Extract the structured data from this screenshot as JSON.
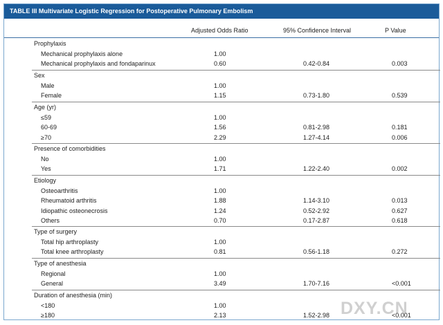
{
  "title": "TABLE III Multivariate Logistic Regression for Postoperative Pulmonary Embolism",
  "columns": {
    "or": "Adjusted Odds Ratio",
    "ci": "95% Confidence Interval",
    "p": "P Value"
  },
  "sections": [
    {
      "label": "Prophylaxis",
      "rows": [
        {
          "label": "Mechanical prophylaxis alone",
          "or": "1.00",
          "ci": "",
          "p": ""
        },
        {
          "label": "Mechanical prophylaxis and fondaparinux",
          "or": "0.60",
          "ci": "0.42-0.84",
          "p": "0.003"
        }
      ]
    },
    {
      "label": "Sex",
      "rows": [
        {
          "label": "Male",
          "or": "1.00",
          "ci": "",
          "p": ""
        },
        {
          "label": "Female",
          "or": "1.15",
          "ci": "0.73-1.80",
          "p": "0.539"
        }
      ]
    },
    {
      "label": "Age (yr)",
      "rows": [
        {
          "label": "≤59",
          "or": "1.00",
          "ci": "",
          "p": ""
        },
        {
          "label": "60-69",
          "or": "1.56",
          "ci": "0.81-2.98",
          "p": "0.181"
        },
        {
          "label": "≥70",
          "or": "2.29",
          "ci": "1.27-4.14",
          "p": "0.006"
        }
      ]
    },
    {
      "label": "Presence of comorbidities",
      "rows": [
        {
          "label": "No",
          "or": "1.00",
          "ci": "",
          "p": ""
        },
        {
          "label": "Yes",
          "or": "1.71",
          "ci": "1.22-2.40",
          "p": "0.002"
        }
      ]
    },
    {
      "label": "Etiology",
      "rows": [
        {
          "label": "Osteoarthritis",
          "or": "1.00",
          "ci": "",
          "p": ""
        },
        {
          "label": "Rheumatoid arthritis",
          "or": "1.88",
          "ci": "1.14-3.10",
          "p": "0.013"
        },
        {
          "label": "Idiopathic osteonecrosis",
          "or": "1.24",
          "ci": "0.52-2.92",
          "p": "0.627"
        },
        {
          "label": "Others",
          "or": "0.70",
          "ci": "0.17-2.87",
          "p": "0.618"
        }
      ]
    },
    {
      "label": "Type of surgery",
      "rows": [
        {
          "label": "Total hip arthroplasty",
          "or": "1.00",
          "ci": "",
          "p": ""
        },
        {
          "label": "Total knee arthroplasty",
          "or": "0.81",
          "ci": "0.56-1.18",
          "p": "0.272"
        }
      ]
    },
    {
      "label": "Type of anesthesia",
      "rows": [
        {
          "label": "Regional",
          "or": "1.00",
          "ci": "",
          "p": ""
        },
        {
          "label": "General",
          "or": "3.49",
          "ci": "1.70-7.16",
          "p": "<0.001"
        }
      ]
    },
    {
      "label": "Duration of anesthesia (min)",
      "rows": [
        {
          "label": "<180",
          "or": "1.00",
          "ci": "",
          "p": ""
        },
        {
          "label": "≥180",
          "or": "2.13",
          "ci": "1.52-2.98",
          "p": "<0.001"
        }
      ]
    }
  ],
  "watermark": "DXY.CN"
}
